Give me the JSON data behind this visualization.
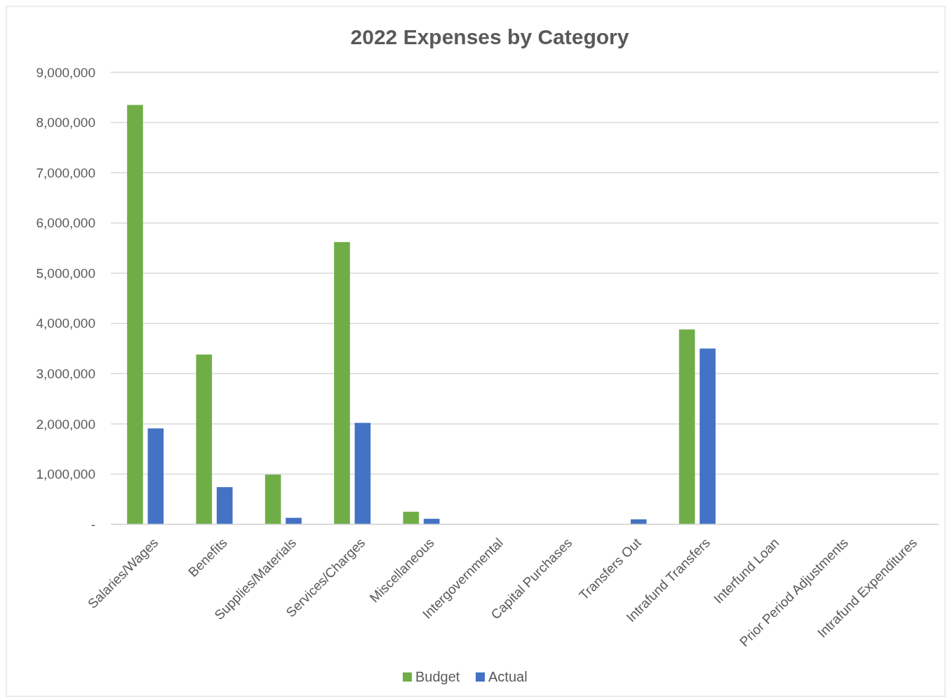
{
  "chart_data": {
    "type": "bar",
    "title": "2022 Expenses by Category",
    "categories": [
      "Salaries/Wages",
      "Benefits",
      "Supplies/Materials",
      "Services/Charges",
      "Miscellaneous",
      "Intergovernmental",
      "Capital Purchases",
      "Transfers Out",
      "Intrafund Transfers",
      "Interfund Loan",
      "Prior Period Adjustments",
      "Intrafund Expenditures"
    ],
    "series": [
      {
        "name": "Budget",
        "color": "#70ad47",
        "values": [
          8350000,
          3380000,
          990000,
          5620000,
          250000,
          0,
          0,
          0,
          3880000,
          0,
          0,
          0
        ]
      },
      {
        "name": "Actual",
        "color": "#4472c4",
        "values": [
          1910000,
          740000,
          130000,
          2020000,
          110000,
          0,
          0,
          100000,
          3500000,
          0,
          0,
          0
        ]
      }
    ],
    "ylim": [
      0,
      9000000
    ],
    "yticks": [
      {
        "value": 0,
        "label": "-"
      },
      {
        "value": 1000000,
        "label": "1,000,000"
      },
      {
        "value": 2000000,
        "label": "2,000,000"
      },
      {
        "value": 3000000,
        "label": "3,000,000"
      },
      {
        "value": 4000000,
        "label": "4,000,000"
      },
      {
        "value": 5000000,
        "label": "5,000,000"
      },
      {
        "value": 6000000,
        "label": "6,000,000"
      },
      {
        "value": 7000000,
        "label": "7,000,000"
      },
      {
        "value": 8000000,
        "label": "8,000,000"
      },
      {
        "value": 9000000,
        "label": "9,000,000"
      }
    ],
    "grid": "y",
    "legend": "bottom"
  }
}
